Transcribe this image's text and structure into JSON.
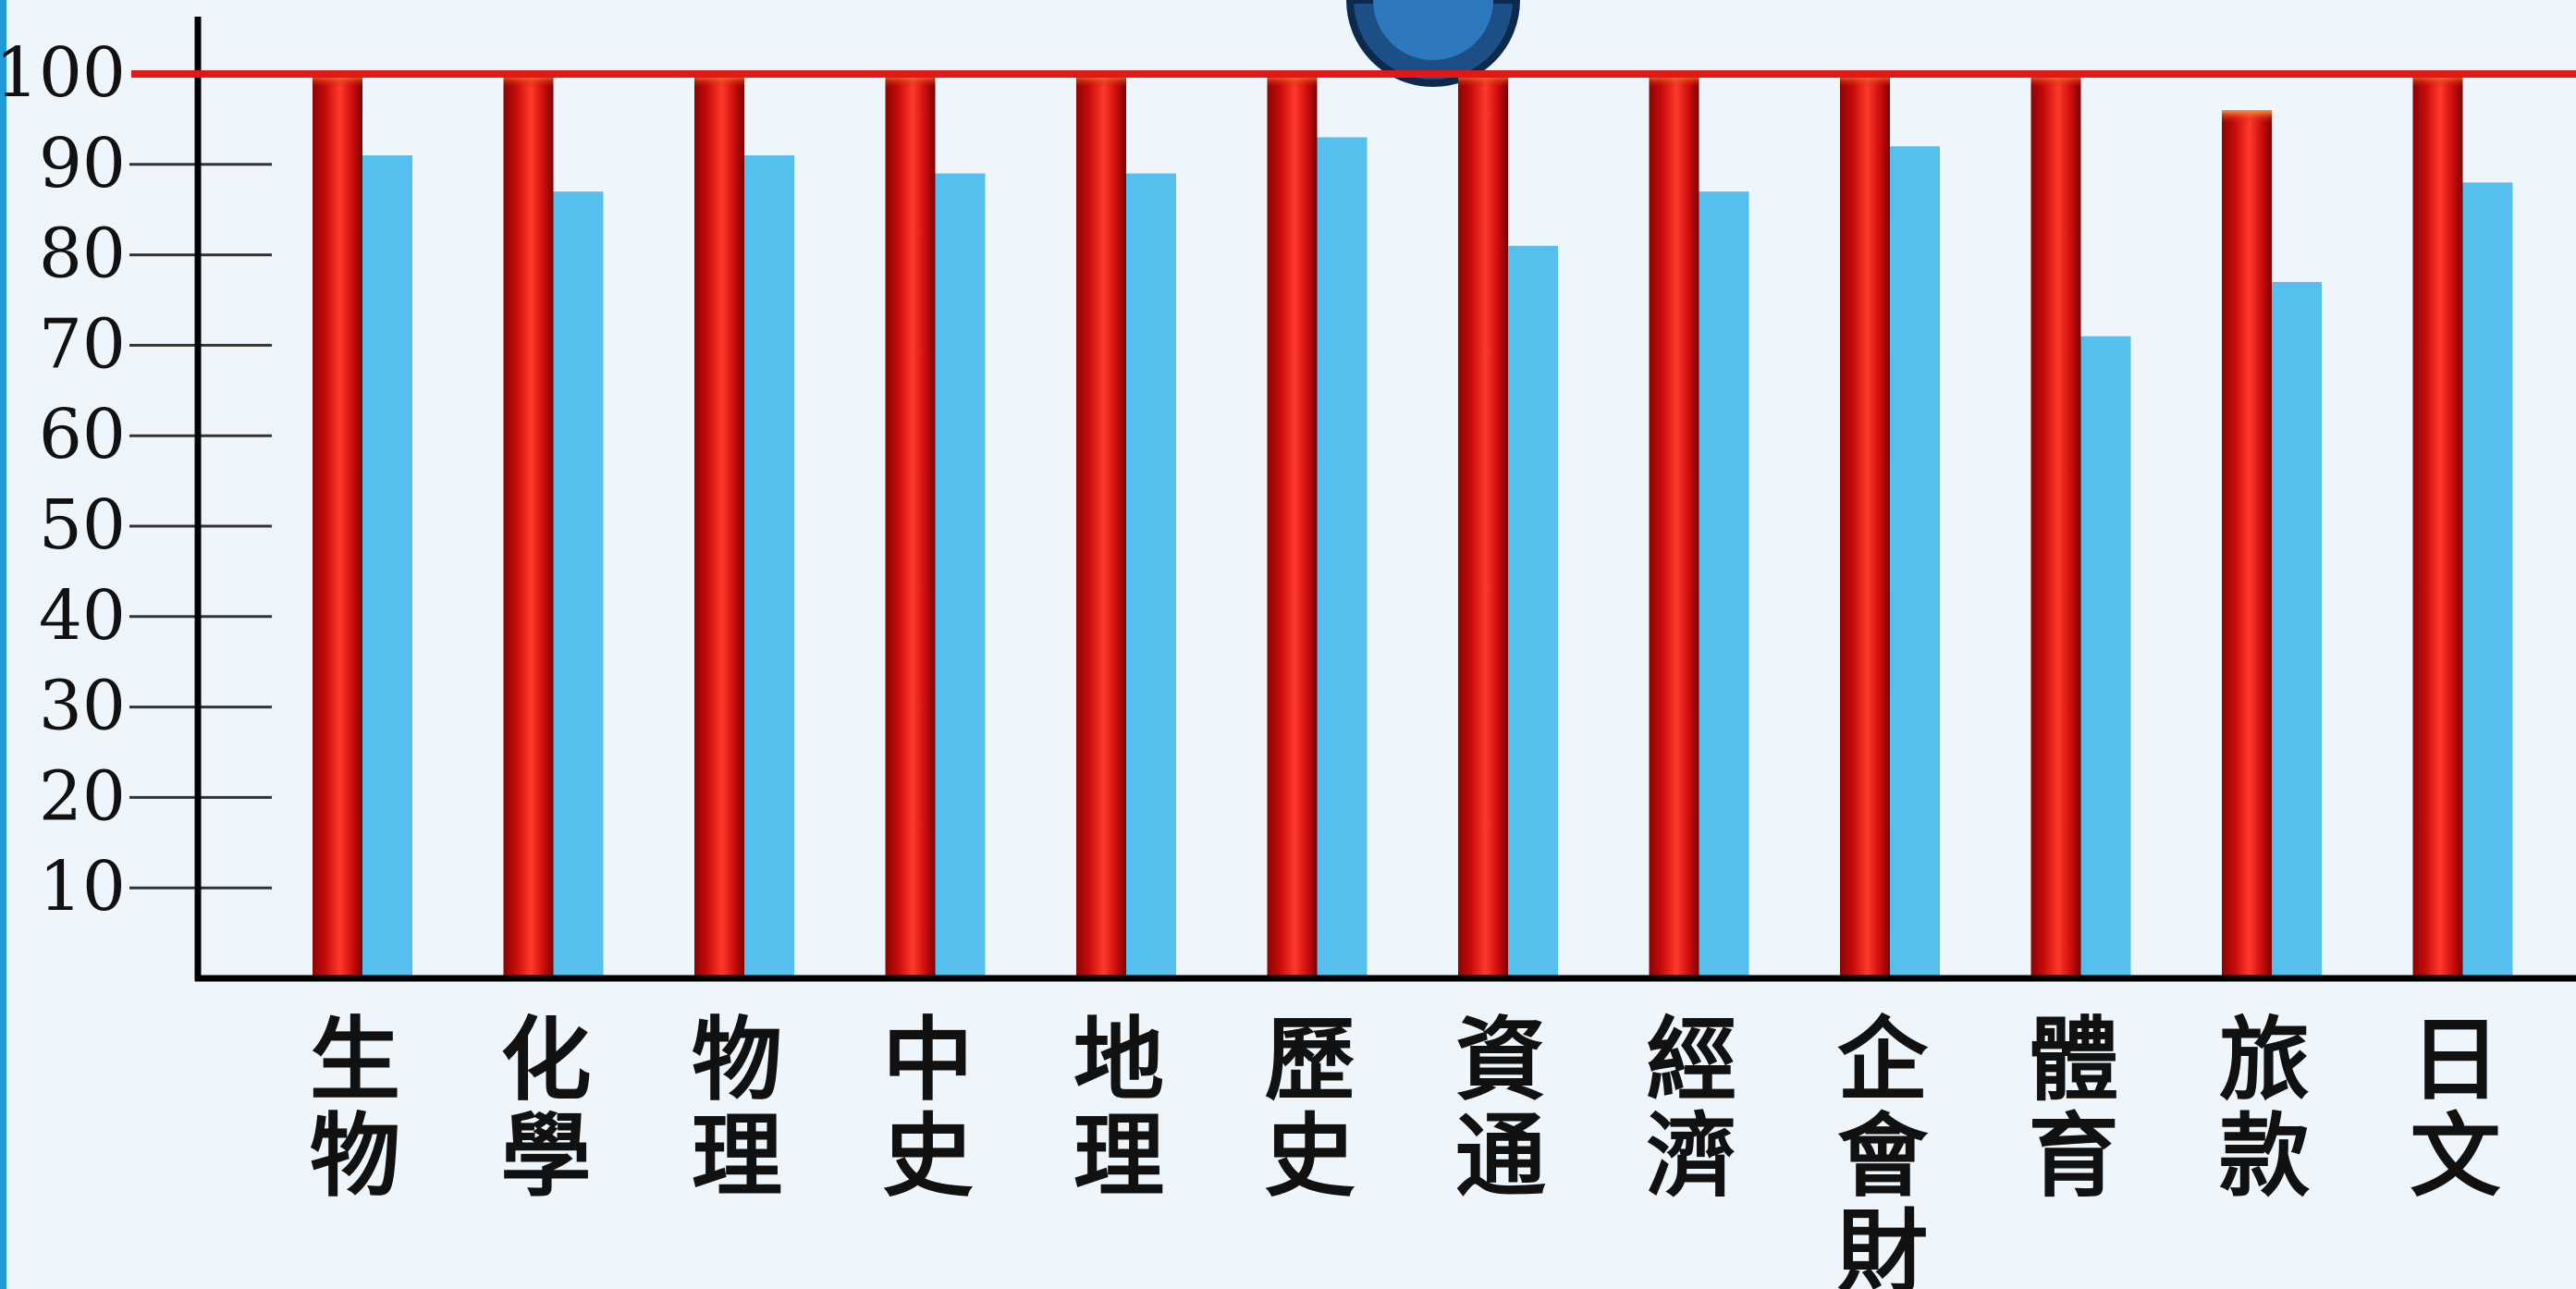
{
  "chart_data": {
    "type": "bar",
    "categories": [
      "生物",
      "化學",
      "物理",
      "中史",
      "地理",
      "歷史",
      "資通",
      "經濟",
      "企會財",
      "體育",
      "旅款",
      "日文"
    ],
    "series": [
      {
        "values": [
          100,
          100,
          100,
          100,
          100,
          100,
          100,
          100,
          100,
          100,
          96,
          100
        ],
        "color": "#d40c0c"
      },
      {
        "values": [
          91,
          87,
          91,
          89,
          89,
          93,
          81,
          87,
          92,
          71,
          77,
          88
        ],
        "color": "#55c0ee"
      }
    ],
    "yticks": [
      10,
      20,
      30,
      40,
      50,
      60,
      70,
      80,
      90,
      100
    ],
    "ylim": [
      0,
      100
    ],
    "reference_line": {
      "value": 100,
      "color": "#e01818"
    },
    "grid": false,
    "legend": "none"
  }
}
